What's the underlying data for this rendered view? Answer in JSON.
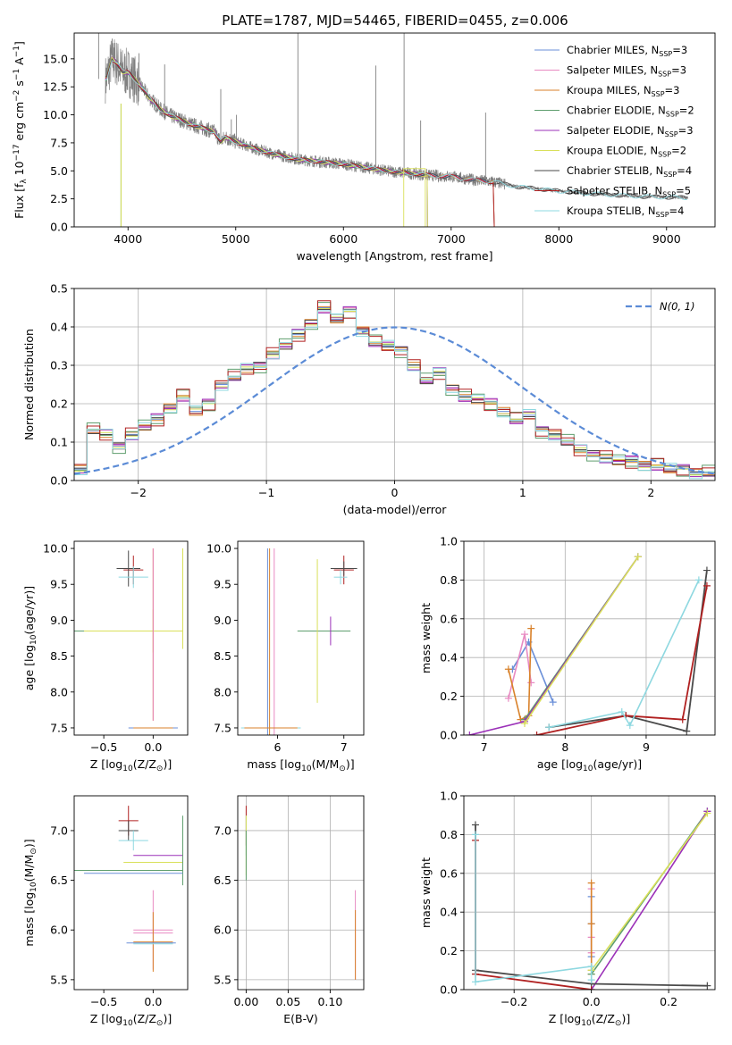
{
  "title": "PLATE=1787, MJD=54465, FIBERID=0455, z=0.006",
  "series": [
    {
      "name": "Chabrier MILES",
      "nssp": "3",
      "color": "#6a8fd8"
    },
    {
      "name": "Salpeter MILES",
      "nssp": "3",
      "color": "#e88ac2"
    },
    {
      "name": "Kroupa MILES",
      "nssp": "3",
      "color": "#d9822b"
    },
    {
      "name": "Chabrier ELODIE",
      "nssp": "2",
      "color": "#5f9e6e"
    },
    {
      "name": "Salpeter ELODIE",
      "nssp": "3",
      "color": "#9b30b8"
    },
    {
      "name": "Kroupa ELODIE",
      "nssp": "2",
      "color": "#d9e05a"
    },
    {
      "name": "Chabrier STELIB",
      "nssp": "4",
      "color": "#4a4a4a"
    },
    {
      "name": "Salpeter STELIB",
      "nssp": "5",
      "color": "#b02020"
    },
    {
      "name": "Kroupa STELIB",
      "nssp": "4",
      "color": "#8ed8e0"
    }
  ],
  "legend_nssp_prefix": "N",
  "legend_nssp_sub": "SSP",
  "chart_data": [
    {
      "id": "spectrum",
      "type": "line",
      "xlabel": "wavelength [Angstrom, rest frame]",
      "ylabel": "Flux [f_λ 10^-17 erg cm^-2 s^-1 A^-1]",
      "xlim": [
        3500,
        9450
      ],
      "ylim": [
        0,
        17.3
      ],
      "xticks": [
        4000,
        5000,
        6000,
        7000,
        8000,
        9000
      ],
      "yticks": [
        0.0,
        2.5,
        5.0,
        7.5,
        10.0,
        12.5,
        15.0
      ],
      "data_color": "#808080",
      "continuum": {
        "x": [
          3800,
          3850,
          3900,
          3950,
          4000,
          4100,
          4200,
          4300,
          4400,
          4500,
          4600,
          4700,
          4800,
          4860,
          4900,
          5000,
          5200,
          5400,
          5600,
          5800,
          6000,
          6200,
          6400,
          6600,
          6800,
          7000,
          7200,
          7400,
          7600,
          7800,
          8000,
          8400,
          8800,
          9200
        ],
        "y": [
          13.2,
          15.0,
          14.6,
          13.8,
          13.8,
          12.8,
          11.5,
          10.5,
          9.9,
          9.5,
          9.1,
          8.8,
          8.5,
          7.6,
          8.0,
          7.6,
          6.9,
          6.4,
          6.0,
          5.8,
          5.6,
          5.3,
          5.0,
          4.8,
          4.6,
          4.5,
          4.2,
          4.0,
          3.6,
          3.4,
          3.2,
          2.9,
          2.7,
          2.6
        ]
      },
      "emission_lines": [
        {
          "x": 3727,
          "y": 17.3
        },
        {
          "x": 3869,
          "y": 16.0
        },
        {
          "x": 4101,
          "y": 15.5
        },
        {
          "x": 4340,
          "y": 14.5
        },
        {
          "x": 4861,
          "y": 12.3
        },
        {
          "x": 4959,
          "y": 9.6
        },
        {
          "x": 5007,
          "y": 10.0
        },
        {
          "x": 5577,
          "y": 17.3
        },
        {
          "x": 6300,
          "y": 14.4
        },
        {
          "x": 6563,
          "y": 17.3
        },
        {
          "x": 6717,
          "y": 9.5
        },
        {
          "x": 7320,
          "y": 10.2
        }
      ]
    },
    {
      "id": "residual-hist",
      "type": "histogram",
      "xlabel": "(data-model)/error",
      "ylabel": "Normed distribution",
      "xlim": [
        -2.5,
        2.5
      ],
      "ylim": [
        0,
        0.5
      ],
      "xticks": [
        -2,
        -1,
        0,
        1,
        2
      ],
      "yticks": [
        0.0,
        0.1,
        0.2,
        0.3,
        0.4,
        0.5
      ],
      "grid": true,
      "legend": "N(0, 1)",
      "normal_color": "#5b8bd6",
      "bin_edges": [
        -2.5,
        -2.4,
        -2.3,
        -2.2,
        -2.1,
        -2.0,
        -1.9,
        -1.8,
        -1.7,
        -1.6,
        -1.5,
        -1.4,
        -1.3,
        -1.2,
        -1.1,
        -1.0,
        -0.9,
        -0.8,
        -0.7,
        -0.6,
        -0.5,
        -0.4,
        -0.3,
        -0.2,
        -0.1,
        0.0,
        0.1,
        0.2,
        0.3,
        0.4,
        0.5,
        0.6,
        0.7,
        0.8,
        0.9,
        1.0,
        1.1,
        1.2,
        1.3,
        1.4,
        1.5,
        1.6,
        1.7,
        1.8,
        1.9,
        2.0,
        2.1,
        2.2,
        2.3,
        2.4,
        2.5
      ],
      "hist_values": [
        0.03,
        0.13,
        0.12,
        0.09,
        0.12,
        0.14,
        0.16,
        0.19,
        0.22,
        0.18,
        0.2,
        0.25,
        0.27,
        0.29,
        0.3,
        0.33,
        0.35,
        0.38,
        0.41,
        0.45,
        0.42,
        0.44,
        0.39,
        0.36,
        0.35,
        0.34,
        0.3,
        0.26,
        0.28,
        0.24,
        0.22,
        0.21,
        0.2,
        0.18,
        0.16,
        0.17,
        0.13,
        0.12,
        0.1,
        0.08,
        0.07,
        0.06,
        0.05,
        0.05,
        0.04,
        0.04,
        0.03,
        0.03,
        0.02,
        0.02
      ],
      "hist_offsets": [
        0.0,
        -0.012,
        0.01,
        -0.02,
        0.014,
        0.006,
        -0.008,
        0.018,
        -0.015,
        0.009
      ]
    },
    {
      "id": "age-vs-z",
      "type": "errorbar",
      "xlabel": "Z [log10(Z/Z_sun)]",
      "ylabel": "age [log10(age/yr)]",
      "xlim": [
        -0.8,
        0.35
      ],
      "ylim": [
        7.4,
        10.1
      ],
      "xticks": [
        -0.5,
        0.0
      ],
      "yticks": [
        7.5,
        8.0,
        8.5,
        9.0,
        9.5,
        10.0
      ],
      "points": [
        {
          "x": -0.2,
          "y": 9.7,
          "ex": 0.1,
          "ey": 0.2,
          "s": 7
        },
        {
          "x": -0.25,
          "y": 9.72,
          "ex": 0.12,
          "ey": 0.25,
          "s": 6
        },
        {
          "x": -0.2,
          "y": 9.6,
          "ex": 0.15,
          "ey": 0.15,
          "s": 8
        },
        {
          "x": -0.3,
          "y": 8.85,
          "ex": 0.5,
          "ey": 0.0,
          "s": 3
        },
        {
          "x": 0.0,
          "y": 8.85,
          "ex": 0.3,
          "ey": 0.3,
          "s": 5
        },
        {
          "x": -0.2,
          "y": 8.85,
          "ex": 0.5,
          "ey": 0.0,
          "s": 5
        },
        {
          "x": 0.3,
          "y": 9.3,
          "ex": 0.0,
          "ey": 0.7,
          "s": 5
        },
        {
          "x": 0.3,
          "y": 9.5,
          "ex": 0.0,
          "ey": 0.5,
          "s": 5
        },
        {
          "x": 0.0,
          "y": 8.8,
          "ex": 0.0,
          "ey": 1.2,
          "s": 2
        },
        {
          "x": 0.0,
          "y": 8.8,
          "ex": 0.0,
          "ey": 1.2,
          "s": 1
        },
        {
          "x": 0.0,
          "y": 7.5,
          "ex": 0.25,
          "ey": 0.0,
          "s": 0
        },
        {
          "x": 0.0,
          "y": 7.5,
          "ex": 0.2,
          "ey": 0.0,
          "s": 2
        }
      ]
    },
    {
      "id": "age-vs-mass",
      "type": "errorbar",
      "xlabel": "mass [log10(M/M_sun)]",
      "ylabel": "",
      "xlim": [
        5.4,
        7.3
      ],
      "ylim": [
        7.4,
        10.1
      ],
      "xticks": [
        6,
        7
      ],
      "yticks": [
        7.5,
        8.0,
        8.5,
        9.0,
        9.5,
        10.0
      ],
      "points": [
        {
          "x": 7.0,
          "y": 9.7,
          "ex": 0.15,
          "ey": 0.2,
          "s": 7
        },
        {
          "x": 7.0,
          "y": 9.72,
          "ex": 0.2,
          "ey": 0.1,
          "s": 6
        },
        {
          "x": 6.95,
          "y": 9.6,
          "ex": 0.1,
          "ey": 0.1,
          "s": 8
        },
        {
          "x": 6.7,
          "y": 8.85,
          "ex": 0.4,
          "ey": 0.0,
          "s": 3
        },
        {
          "x": 6.6,
          "y": 8.85,
          "ex": 0.0,
          "ey": 1.0,
          "s": 5
        },
        {
          "x": 6.8,
          "y": 8.85,
          "ex": 0.0,
          "ey": 0.2,
          "s": 4
        },
        {
          "x": 5.95,
          "y": 8.7,
          "ex": 0.0,
          "ey": 1.3,
          "s": 1
        },
        {
          "x": 5.88,
          "y": 8.7,
          "ex": 0.0,
          "ey": 1.3,
          "s": 2
        },
        {
          "x": 5.85,
          "y": 8.7,
          "ex": 0.0,
          "ey": 1.3,
          "s": 0
        },
        {
          "x": 5.9,
          "y": 7.5,
          "ex": 0.45,
          "ey": 0.0,
          "s": 8
        },
        {
          "x": 5.9,
          "y": 7.5,
          "ex": 0.4,
          "ey": 0.0,
          "s": 2
        }
      ]
    },
    {
      "id": "weight-vs-age",
      "type": "line",
      "xlabel": "age [log10(age/yr)]",
      "ylabel": "mass weight",
      "xlim": [
        6.75,
        9.85
      ],
      "ylim": [
        0,
        1.0
      ],
      "xticks": [
        7,
        8,
        9
      ],
      "yticks": [
        0.0,
        0.2,
        0.4,
        0.6,
        0.8,
        1.0
      ],
      "grid": true,
      "series": [
        {
          "s": 0,
          "x": [
            7.35,
            7.55,
            7.85
          ],
          "y": [
            0.34,
            0.48,
            0.17
          ]
        },
        {
          "s": 1,
          "x": [
            7.3,
            7.5,
            7.58
          ],
          "y": [
            0.19,
            0.52,
            0.27
          ]
        },
        {
          "s": 2,
          "x": [
            7.3,
            7.45,
            7.55,
            7.58
          ],
          "y": [
            0.34,
            0.08,
            0.1,
            0.55
          ]
        },
        {
          "s": 3,
          "x": [
            7.5,
            8.9
          ],
          "y": [
            0.08,
            0.92
          ]
        },
        {
          "s": 4,
          "x": [
            6.82,
            7.5,
            8.9
          ],
          "y": [
            0.0,
            0.07,
            0.92
          ]
        },
        {
          "s": 5,
          "x": [
            7.5,
            8.9
          ],
          "y": [
            0.06,
            0.92
          ]
        },
        {
          "s": 6,
          "x": [
            7.8,
            8.75,
            9.5,
            9.75
          ],
          "y": [
            0.04,
            0.1,
            0.02,
            0.85
          ]
        },
        {
          "s": 7,
          "x": [
            7.65,
            8.75,
            9.45,
            9.75
          ],
          "y": [
            0.0,
            0.1,
            0.08,
            0.77
          ]
        },
        {
          "s": 8,
          "x": [
            7.8,
            8.7,
            8.8,
            9.65
          ],
          "y": [
            0.04,
            0.12,
            0.05,
            0.8
          ]
        }
      ]
    },
    {
      "id": "mass-vs-z",
      "type": "errorbar",
      "xlabel": "Z [log10(Z/Z_sun)]",
      "ylabel": "mass [log10(M/M_sun)]",
      "xlim": [
        -0.8,
        0.35
      ],
      "ylim": [
        5.4,
        7.35
      ],
      "xticks": [
        -0.5,
        0.0
      ],
      "yticks": [
        5.5,
        6.0,
        6.5,
        7.0
      ],
      "points": [
        {
          "x": -0.25,
          "y": 7.1,
          "ex": 0.1,
          "ey": 0.15,
          "s": 7
        },
        {
          "x": -0.25,
          "y": 7.0,
          "ex": 0.1,
          "ey": 0.1,
          "s": 6
        },
        {
          "x": -0.2,
          "y": 6.9,
          "ex": 0.15,
          "ey": 0.1,
          "s": 8
        },
        {
          "x": 0.05,
          "y": 6.75,
          "ex": 0.25,
          "ey": 0.0,
          "s": 4
        },
        {
          "x": 0.0,
          "y": 6.68,
          "ex": 0.3,
          "ey": 0.0,
          "s": 5
        },
        {
          "x": -0.25,
          "y": 6.6,
          "ex": 0.55,
          "ey": 0.0,
          "s": 3
        },
        {
          "x": 0.3,
          "y": 6.8,
          "ex": 0.0,
          "ey": 0.35,
          "s": 3
        },
        {
          "x": -0.2,
          "y": 6.57,
          "ex": 0.5,
          "ey": 0.0,
          "s": 0
        },
        {
          "x": 0.0,
          "y": 6.0,
          "ex": 0.2,
          "ey": 0.4,
          "s": 1
        },
        {
          "x": 0.0,
          "y": 5.97,
          "ex": 0.2,
          "ey": 0.0,
          "s": 1
        },
        {
          "x": 0.0,
          "y": 5.88,
          "ex": 0.2,
          "ey": 0.3,
          "s": 2
        },
        {
          "x": -0.02,
          "y": 5.87,
          "ex": 0.25,
          "ey": 0.0,
          "s": 0
        },
        {
          "x": 0.0,
          "y": 5.86,
          "ex": 0.2,
          "ey": 0.0,
          "s": 8
        }
      ]
    },
    {
      "id": "mass-vs-ebv",
      "type": "errorbar",
      "xlabel": "E(B-V)",
      "ylabel": "",
      "xlim": [
        -0.01,
        0.14
      ],
      "ylim": [
        5.4,
        7.35
      ],
      "xticks": [
        0.0,
        0.05,
        0.1
      ],
      "ytick_values": [
        5.5,
        6.0,
        6.5,
        7.0
      ],
      "xtick_labels": [
        "0.00",
        "0.05",
        "0.10"
      ],
      "grid": true,
      "points": [
        {
          "x": 0.0,
          "y": 7.05,
          "ex": 0.0,
          "ey": 0.2,
          "s": 7
        },
        {
          "x": 0.0,
          "y": 6.95,
          "ex": 0.0,
          "ey": 0.2,
          "s": 8
        },
        {
          "x": 0.0,
          "y": 6.85,
          "ex": 0.0,
          "ey": 0.3,
          "s": 5
        },
        {
          "x": 0.0,
          "y": 6.75,
          "ex": 0.0,
          "ey": 0.25,
          "s": 3
        },
        {
          "x": 0.13,
          "y": 5.95,
          "ex": 0.0,
          "ey": 0.45,
          "s": 1
        },
        {
          "x": 0.13,
          "y": 5.85,
          "ex": 0.0,
          "ey": 0.35,
          "s": 2
        }
      ]
    },
    {
      "id": "weight-vs-z",
      "type": "line",
      "xlabel": "Z [log10(Z/Z_sun)]",
      "ylabel": "mass weight",
      "xlim": [
        -0.33,
        0.32
      ],
      "ylim": [
        0,
        1.0
      ],
      "xticks": [
        -0.2,
        0.0,
        0.2
      ],
      "yticks": [
        0.0,
        0.2,
        0.4,
        0.6,
        0.8,
        1.0
      ],
      "grid": true,
      "series": [
        {
          "s": 0,
          "x": [
            0.0,
            0.0,
            0.0
          ],
          "y": [
            0.48,
            0.34,
            0.17
          ]
        },
        {
          "s": 1,
          "x": [
            0.0,
            0.0,
            0.0
          ],
          "y": [
            0.52,
            0.27,
            0.19
          ]
        },
        {
          "s": 2,
          "x": [
            0.0,
            0.0,
            0.0,
            0.0
          ],
          "y": [
            0.55,
            0.34,
            0.1,
            0.08
          ]
        },
        {
          "s": 3,
          "x": [
            0.0,
            0.3
          ],
          "y": [
            0.08,
            0.92
          ]
        },
        {
          "s": 4,
          "x": [
            0.0,
            0.3
          ],
          "y": [
            0.0,
            0.92
          ]
        },
        {
          "s": 5,
          "x": [
            0.0,
            0.3
          ],
          "y": [
            0.1,
            0.91
          ]
        },
        {
          "s": 6,
          "x": [
            -0.3,
            -0.3,
            0.0,
            0.3
          ],
          "y": [
            0.85,
            0.1,
            0.03,
            0.02
          ]
        },
        {
          "s": 7,
          "x": [
            -0.3,
            -0.3,
            0.0
          ],
          "y": [
            0.77,
            0.08,
            0.0
          ]
        },
        {
          "s": 8,
          "x": [
            -0.3,
            -0.3,
            0.0,
            0.0
          ],
          "y": [
            0.8,
            0.04,
            0.12,
            0.05
          ]
        }
      ]
    }
  ]
}
